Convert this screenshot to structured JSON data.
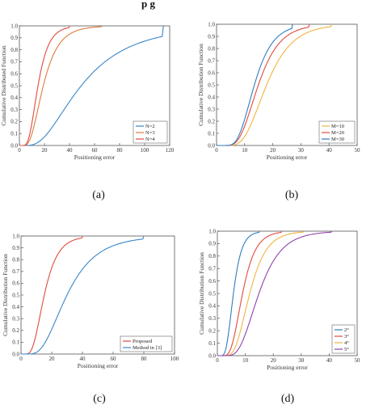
{
  "top_text": "p         g",
  "chart_data": [
    {
      "type": "line",
      "panel": "a",
      "caption": "(a)",
      "xlabel": "Positioning error",
      "ylabel": "Cumulative Distributed Function",
      "xlim": [
        0,
        120
      ],
      "ylim": [
        0,
        1
      ],
      "xticks": [
        0,
        20,
        40,
        60,
        80,
        100,
        120
      ],
      "yticks": [
        0,
        0.1,
        0.2,
        0.3,
        0.4,
        0.5,
        0.6,
        0.7,
        0.8,
        0.9,
        1.0
      ],
      "grid": false,
      "legend_position": "bottom-right",
      "series": [
        {
          "name": "N=2",
          "color": "#3a86c8",
          "mu": 3.9,
          "sigma": 0.62,
          "xmax": 115
        },
        {
          "name": "N=3",
          "color": "#e07b39",
          "mu": 2.95,
          "sigma": 0.5,
          "xmax": 66
        },
        {
          "name": "N=4",
          "color": "#e04a3f",
          "mu": 2.7,
          "sigma": 0.45,
          "xmax": 40
        }
      ]
    },
    {
      "type": "line",
      "panel": "b",
      "caption": "(b)",
      "xlabel": "Positioning error",
      "ylabel": "Cumulative Distribution Function",
      "xlim": [
        0,
        50
      ],
      "ylim": [
        0,
        1
      ],
      "xticks": [
        0,
        10,
        20,
        30,
        40,
        50
      ],
      "yticks": [
        0,
        0.1,
        0.2,
        0.3,
        0.4,
        0.5,
        0.6,
        0.7,
        0.8,
        0.9,
        1.0
      ],
      "grid": false,
      "legend_position": "bottom-right",
      "series": [
        {
          "name": "M=10",
          "color": "#f0b441",
          "mu": 2.88,
          "sigma": 0.4,
          "xmax": 41
        },
        {
          "name": "M=20",
          "color": "#e04a3f",
          "mu": 2.7,
          "sigma": 0.4,
          "xmax": 33
        },
        {
          "name": "M=30",
          "color": "#2f7dc1",
          "mu": 2.6,
          "sigma": 0.38,
          "xmax": 27
        }
      ]
    },
    {
      "type": "line",
      "panel": "c",
      "caption": "(c)",
      "xlabel": "Positioning error",
      "ylabel": "Cumulative Distribution Function",
      "xlim": [
        0,
        100
      ],
      "ylim": [
        0,
        1
      ],
      "xticks": [
        0,
        20,
        40,
        60,
        80,
        100
      ],
      "yticks": [
        0,
        0.1,
        0.2,
        0.3,
        0.4,
        0.5,
        0.6,
        0.7,
        0.8,
        0.9,
        1.0
      ],
      "grid": false,
      "legend_position": "bottom-right",
      "series": [
        {
          "name": "Proposed",
          "color": "#e04a3f",
          "mu": 2.72,
          "sigma": 0.45,
          "xmax": 40
        },
        {
          "name": "Method in [3]",
          "color": "#3a86c8",
          "mu": 3.4,
          "sigma": 0.5,
          "xmax": 80
        }
      ]
    },
    {
      "type": "line",
      "panel": "d",
      "caption": "(d)",
      "xlabel": "Positioning error",
      "ylabel": "Cumulative Distribution Function",
      "xlim": [
        0,
        50
      ],
      "ylim": [
        0,
        1
      ],
      "xticks": [
        0,
        10,
        20,
        30,
        40,
        50
      ],
      "yticks": [
        0,
        0.1,
        0.2,
        0.3,
        0.4,
        0.5,
        0.6,
        0.7,
        0.8,
        0.9,
        1.0
      ],
      "grid": false,
      "legend_position": "bottom-right",
      "series": [
        {
          "name": "2°",
          "color": "#2f7dc1",
          "mu": 1.75,
          "sigma": 0.4,
          "xmax": 15
        },
        {
          "name": "3°",
          "color": "#e04a3f",
          "mu": 2.2,
          "sigma": 0.4,
          "xmax": 23
        },
        {
          "name": "4°",
          "color": "#f0b441",
          "mu": 2.45,
          "sigma": 0.4,
          "xmax": 31
        },
        {
          "name": "5°",
          "color": "#8e44ad",
          "mu": 2.7,
          "sigma": 0.42,
          "xmax": 41
        }
      ]
    }
  ]
}
